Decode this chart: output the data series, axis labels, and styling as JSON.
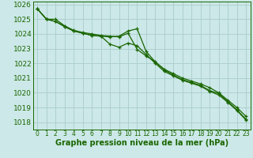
{
  "xlabel": "Graphe pression niveau de la mer (hPa)",
  "ylim_bottom": 1017.5,
  "ylim_top": 1026.2,
  "xlim_left": -0.5,
  "xlim_right": 23.5,
  "yticks": [
    1018,
    1019,
    1020,
    1021,
    1022,
    1023,
    1024,
    1025,
    1026
  ],
  "xticks": [
    0,
    1,
    2,
    3,
    4,
    5,
    6,
    7,
    8,
    9,
    10,
    11,
    12,
    13,
    14,
    15,
    16,
    17,
    18,
    19,
    20,
    21,
    22,
    23
  ],
  "bg_color": "#cce8e8",
  "grid_color": "#aacccc",
  "line_color": "#1a6600",
  "line1_y": [
    1025.7,
    1025.0,
    1024.85,
    1024.5,
    1024.2,
    1024.05,
    1023.9,
    1023.85,
    1023.8,
    1023.85,
    1024.2,
    1024.35,
    1022.8,
    1022.1,
    1021.55,
    1021.2,
    1020.9,
    1020.7,
    1020.5,
    1020.15,
    1019.95,
    1019.4,
    1018.85,
    1018.2
  ],
  "line2_y": [
    1025.7,
    1025.0,
    1025.0,
    1024.55,
    1024.25,
    1024.1,
    1024.0,
    1023.9,
    1023.85,
    1023.8,
    1024.05,
    1022.95,
    1022.5,
    1022.1,
    1021.6,
    1021.3,
    1021.0,
    1020.8,
    1020.6,
    1020.35,
    1020.0,
    1019.5,
    1019.0,
    1018.4
  ],
  "line3_y": [
    1025.7,
    1025.0,
    1024.85,
    1024.5,
    1024.2,
    1024.05,
    1023.9,
    1023.85,
    1023.3,
    1023.1,
    1023.38,
    1023.2,
    1022.6,
    1022.0,
    1021.45,
    1021.15,
    1020.85,
    1020.65,
    1020.45,
    1020.1,
    1019.85,
    1019.35,
    1018.8,
    1018.15
  ],
  "xlabel_fontsize": 7,
  "ytick_fontsize": 6.5,
  "xtick_fontsize": 5.5,
  "linewidth": 0.9,
  "markersize": 3.5,
  "markeredgewidth": 0.9
}
